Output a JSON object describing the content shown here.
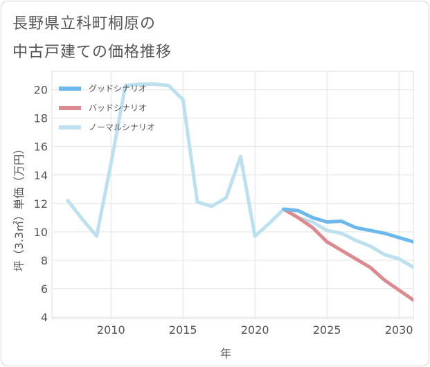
{
  "title_line1": "長野県立科町桐原の",
  "title_line2": "中古戸建ての価格推移",
  "chart_data": {
    "type": "line",
    "xlabel": "年",
    "ylabel": "坪（3.3㎡）単価（万円）",
    "xlim": [
      2005.9,
      2031
    ],
    "ylim": [
      3.9,
      21.3
    ],
    "x_ticks": [
      2010,
      2015,
      2020,
      2025,
      2030
    ],
    "y_ticks": [
      4,
      6,
      8,
      10,
      12,
      14,
      16,
      18,
      20
    ],
    "grid": true,
    "legend_position": "top-left",
    "series": [
      {
        "name": "グッドシナリオ",
        "color": "#6cb8ec",
        "x": [
          2022,
          2023,
          2024,
          2025,
          2026,
          2027,
          2028,
          2029,
          2030,
          2031
        ],
        "values": [
          11.6,
          11.5,
          11.0,
          10.7,
          10.75,
          10.3,
          10.1,
          9.9,
          9.6,
          9.3
        ]
      },
      {
        "name": "バッドシナリオ",
        "color": "#db8a90",
        "x": [
          2022,
          2023,
          2024,
          2025,
          2026,
          2027,
          2028,
          2029,
          2030,
          2031
        ],
        "values": [
          11.6,
          11.0,
          10.3,
          9.3,
          8.7,
          8.1,
          7.5,
          6.6,
          5.9,
          5.2
        ]
      },
      {
        "name": "ノーマルシナリオ",
        "color": "#bde0ee",
        "x": [
          2007,
          2008,
          2009,
          2010,
          2011,
          2012,
          2013,
          2014,
          2015,
          2016,
          2017,
          2018,
          2019,
          2020,
          2021,
          2022,
          2023,
          2024,
          2025,
          2026,
          2027,
          2028,
          2029,
          2030,
          2031
        ],
        "values": [
          12.2,
          10.9,
          9.7,
          14.8,
          20.3,
          20.4,
          20.4,
          20.3,
          19.3,
          12.1,
          11.8,
          12.4,
          15.3,
          9.7,
          10.6,
          11.6,
          11.0,
          10.7,
          10.1,
          9.9,
          9.4,
          9.0,
          8.4,
          8.1,
          7.5
        ]
      }
    ]
  }
}
